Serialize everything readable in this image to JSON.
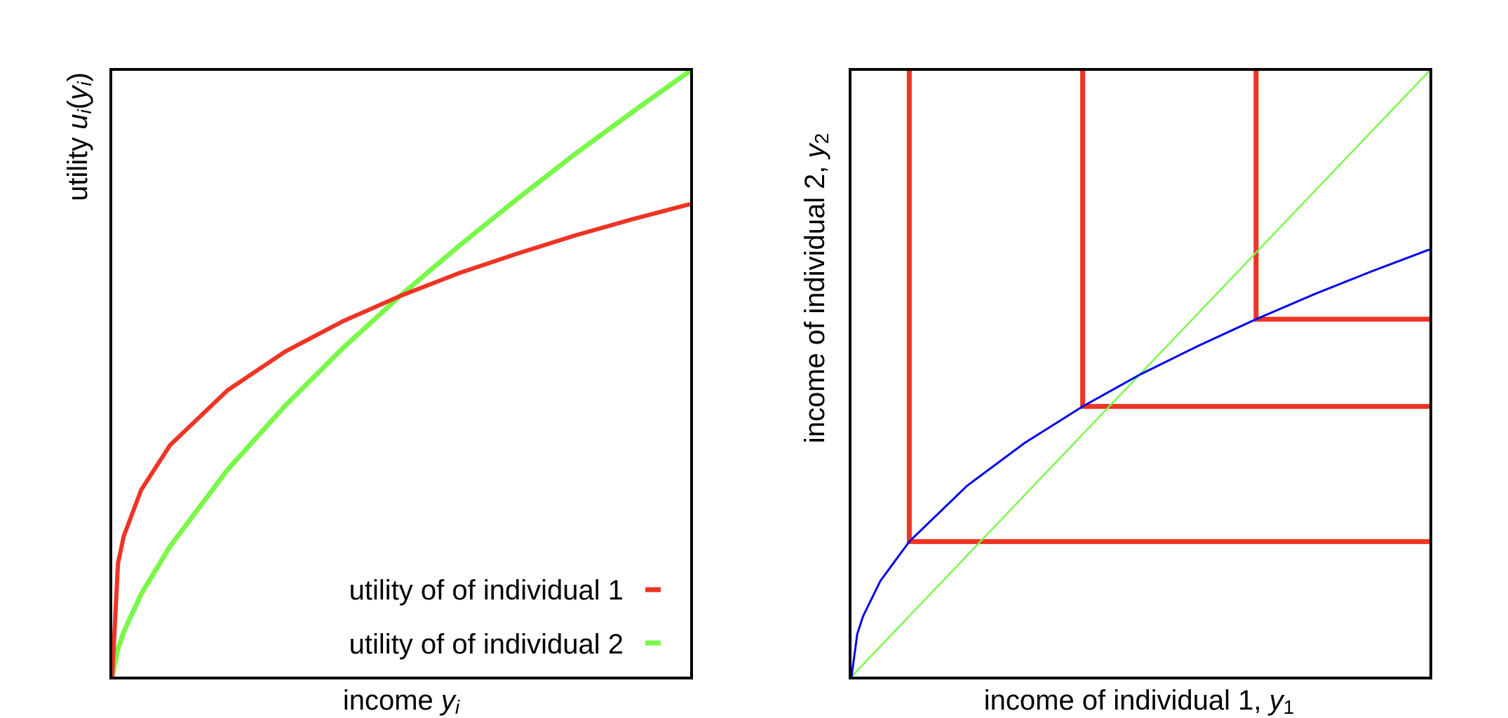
{
  "colors": {
    "red": "#ee3424",
    "green": "#7af84a",
    "blue": "#0000ee",
    "frame": "#000000"
  },
  "chart_data": [
    {
      "type": "line",
      "xlabel": {
        "text": "income ",
        "var": "y",
        "sub": "i"
      },
      "ylabel": {
        "text": "utility ",
        "var1": "u",
        "sub1": "i",
        "open": "(",
        "var2": "y",
        "sub2": "i",
        "close": ")"
      },
      "xlim": [
        0,
        1
      ],
      "ylim": [
        0,
        1
      ],
      "ticks": "none",
      "grid": false,
      "legend_position": "bottom-right",
      "x": [
        0,
        0.01,
        0.02,
        0.05,
        0.1,
        0.2,
        0.3,
        0.4,
        0.5,
        0.6,
        0.7,
        0.8,
        0.9,
        1
      ],
      "series": [
        {
          "name": "utility of of individual 1",
          "color": "#ee3424",
          "values": [
            0,
            0.187,
            0.232,
            0.308,
            0.382,
            0.473,
            0.537,
            0.587,
            0.629,
            0.666,
            0.698,
            0.728,
            0.755,
            0.78
          ]
        },
        {
          "name": "utility of of individual 2",
          "color": "#7af84a",
          "values": [
            0,
            0.046,
            0.074,
            0.136,
            0.215,
            0.342,
            0.448,
            0.543,
            0.63,
            0.711,
            0.788,
            0.862,
            0.932,
            1
          ]
        }
      ]
    },
    {
      "type": "line",
      "xlabel": {
        "text": "income of individual 1, ",
        "var": "y",
        "sub": "1"
      },
      "ylabel": {
        "text": "income of individual 2, ",
        "var": "y",
        "sub": "2"
      },
      "xlim": [
        0,
        1
      ],
      "ylim": [
        0,
        1
      ],
      "ticks": "none",
      "grid": false,
      "x": [
        0,
        0.01,
        0.02,
        0.05,
        0.1,
        0.2,
        0.3,
        0.4,
        0.5,
        0.6,
        0.7,
        0.8,
        0.9,
        1
      ],
      "series": [
        {
          "color": "#0000ee",
          "values": [
            0,
            0.0705,
            0.0997,
            0.158,
            0.223,
            0.315,
            0.386,
            0.446,
            0.499,
            0.546,
            0.59,
            0.631,
            0.669,
            0.705
          ]
        },
        {
          "color": "#7af84a",
          "values": [
            0,
            0.01,
            0.02,
            0.05,
            0.1,
            0.2,
            0.3,
            0.4,
            0.5,
            0.6,
            0.7,
            0.8,
            0.9,
            1
          ]
        }
      ],
      "indifference_corners": [
        {
          "x": 0.1,
          "y": 0.223
        },
        {
          "x": 0.4,
          "y": 0.446
        },
        {
          "x": 0.7,
          "y": 0.59
        }
      ],
      "indifference_color": "#ee3424"
    }
  ]
}
